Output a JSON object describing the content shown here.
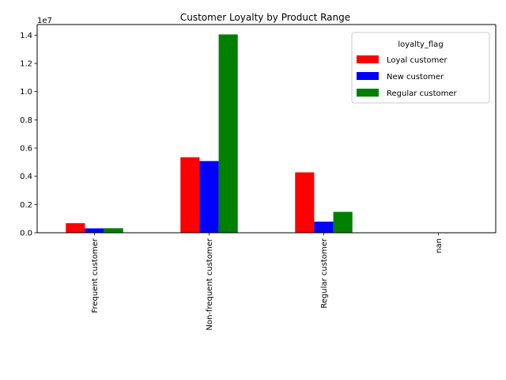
{
  "chart_data": {
    "type": "bar",
    "title": "Customer Loyalty by Product Range",
    "xlabel": "",
    "ylabel": "",
    "y_offset_label": "1e7",
    "categories": [
      "Frequent customer",
      "Non-frequent customer",
      "Regular customer",
      "nan"
    ],
    "series": [
      {
        "name": "Loyal customer",
        "color": "#ff0000",
        "values": [
          680000,
          5350000,
          4280000,
          0
        ]
      },
      {
        "name": "New customer",
        "color": "#0000ff",
        "values": [
          310000,
          5080000,
          790000,
          0
        ]
      },
      {
        "name": "Regular customer",
        "color": "#008000",
        "values": [
          320000,
          14050000,
          1480000,
          0
        ]
      }
    ],
    "ylim": [
      0,
      14750000
    ],
    "y_ticks": [
      0,
      2000000,
      4000000,
      6000000,
      8000000,
      10000000,
      12000000,
      14000000
    ],
    "y_tick_labels": [
      "0.0",
      "0.2",
      "0.4",
      "0.6",
      "0.8",
      "1.0",
      "1.2",
      "1.4"
    ],
    "legend": {
      "title": "loyalty_flag",
      "position": "upper right"
    },
    "grid": false
  }
}
